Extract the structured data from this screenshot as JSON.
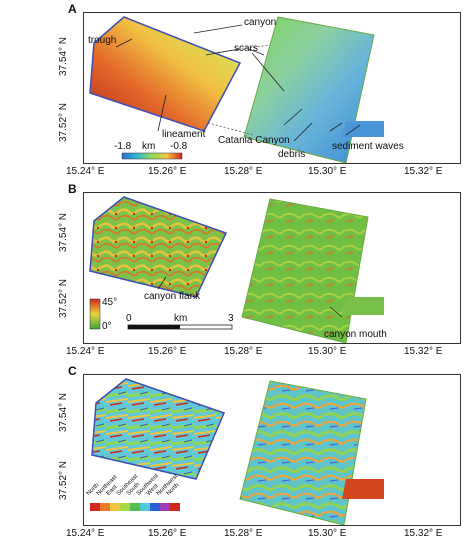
{
  "colors": {
    "blue": "#2a7fd0",
    "green": "#3fbf3f",
    "yellow": "#e0d83a",
    "orange": "#e07a22",
    "red": "#d2261f"
  },
  "panels": {
    "A": {
      "label": "A",
      "lat_labels": [
        "37.54° N",
        "37.52° N"
      ],
      "lon_labels": [
        "15.24° E",
        "15.26° E",
        "15.28° E",
        "15.30° E",
        "15.32° E"
      ],
      "annotations": [
        "canyon",
        "scars",
        "trough",
        "lineament",
        "Catania Canyon",
        "debris",
        "sediment waves"
      ],
      "colorbar": {
        "min": "-1.8",
        "unit": "km",
        "max": "-0.8"
      }
    },
    "B": {
      "label": "B",
      "lat_labels": [
        "37.54° N",
        "37.52° N"
      ],
      "lon_labels": [
        "15.24° E",
        "15.26° E",
        "15.28° E",
        "15.30° E",
        "15.32° E"
      ],
      "annotations": [
        "canyon flank",
        "canyon mouth"
      ],
      "colorbar": {
        "max": "45°",
        "min": "0°"
      },
      "scalebar": {
        "start": "0",
        "unit": "km",
        "end": "3"
      }
    },
    "C": {
      "label": "C",
      "lat_labels": [
        "37.54° N",
        "37.52° N"
      ],
      "lon_labels": [
        "15.24° E",
        "15.26° E",
        "15.28° E",
        "15.30° E",
        "15.32° E"
      ],
      "aspect_legend": [
        "North",
        "Northeast",
        "East",
        "Southeast",
        "South",
        "Southwest",
        "West",
        "Northwest",
        "North"
      ]
    }
  }
}
